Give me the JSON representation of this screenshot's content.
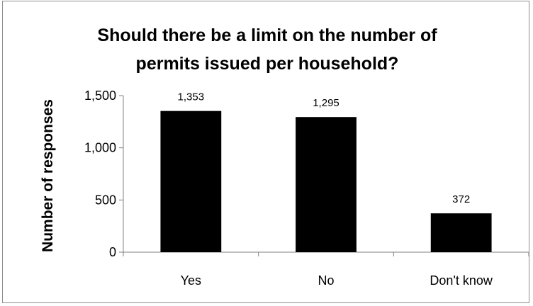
{
  "chart_data": {
    "type": "bar",
    "title_lines": [
      "Should there be a limit on the number of",
      "permits issued per household?"
    ],
    "ylabel": "Number of responses",
    "xlabel": "",
    "categories": [
      "Yes",
      "No",
      "Don't know"
    ],
    "values": [
      1353,
      1295,
      372
    ],
    "value_labels": [
      "1,353",
      "1,295",
      "372"
    ],
    "ylim": [
      0,
      1500
    ],
    "yticks": [
      0,
      500,
      1000,
      1500
    ],
    "ytick_labels": [
      "0",
      "500",
      "1,000",
      "1,500"
    ],
    "grid": false,
    "legend": "none",
    "bar_color": "#000000"
  }
}
